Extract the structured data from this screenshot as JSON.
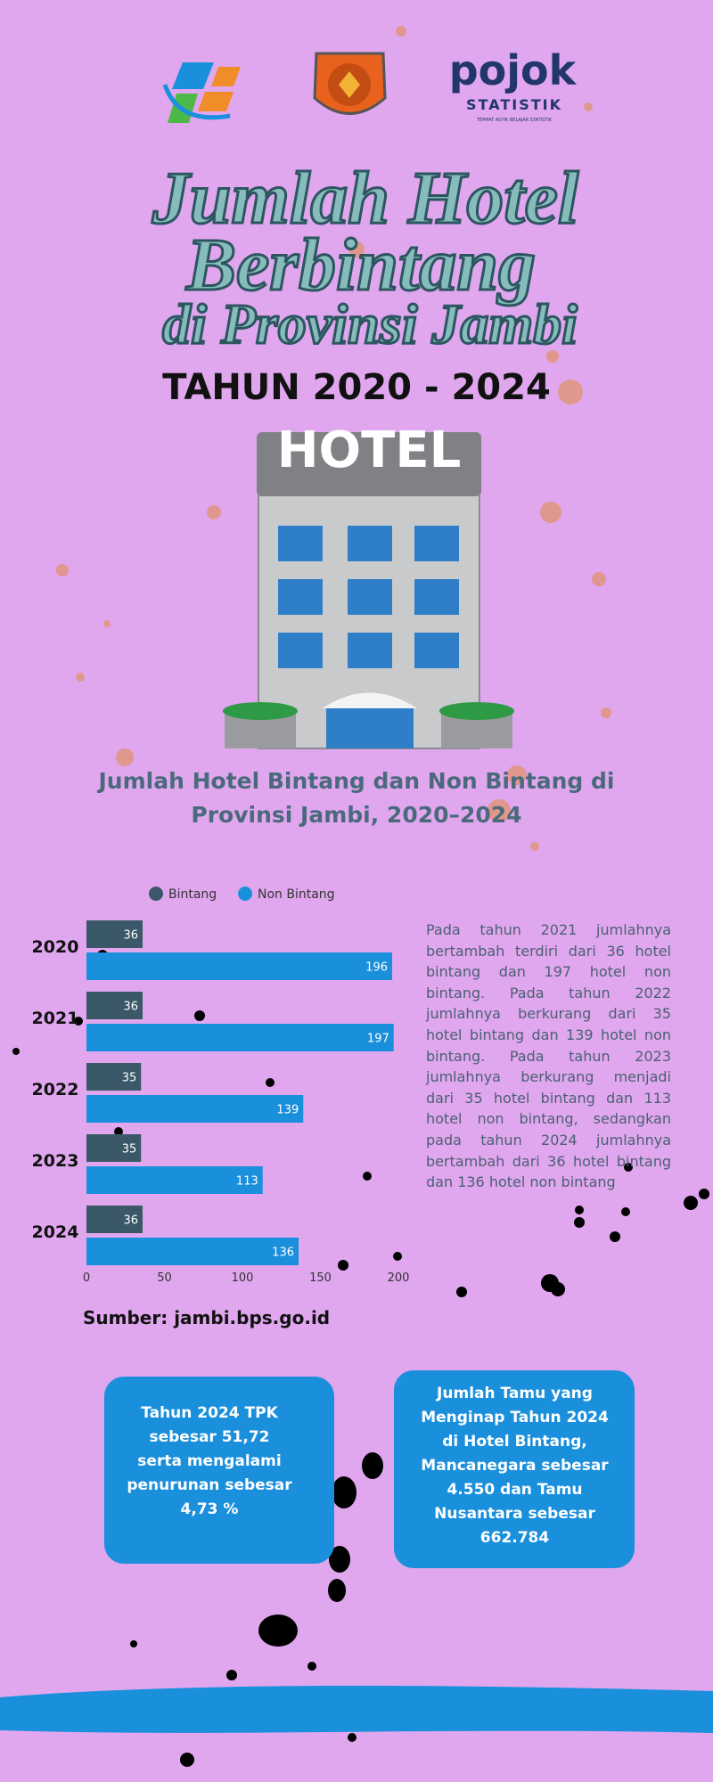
{
  "logos": {
    "pojok": "pojok",
    "statistik": "STATISTIK",
    "tagline": "TEMPAT ASYIK BELAJAR STATISTIK"
  },
  "header": {
    "title_lines": [
      "Jumlah Hotel",
      "Berbintang",
      "di Provinsi Jambi"
    ],
    "subtitle": "TAHUN 2020 - 2024"
  },
  "illustration": {
    "sign": "HOTEL"
  },
  "chart_data": {
    "type": "bar",
    "orientation": "horizontal",
    "title": "Jumlah Hotel Bintang dan Non Bintang di Provinsi Jambi, 2020–2024",
    "categories": [
      "2020",
      "2021",
      "2022",
      "2023",
      "2024"
    ],
    "series": [
      {
        "name": "Bintang",
        "color": "#3b5868",
        "values": [
          36,
          36,
          35,
          35,
          36
        ]
      },
      {
        "name": "Non Bintang",
        "color": "#1a8fdc",
        "values": [
          196,
          197,
          139,
          113,
          136
        ]
      }
    ],
    "xlim": [
      0,
      200
    ],
    "xticks": [
      0,
      50,
      100,
      150,
      200
    ],
    "legend": "top"
  },
  "description": "Pada tahun 2021 jumlahnya bertambah terdiri dari 36 hotel bintang dan 197 hotel non bintang. Pada tahun 2022 jumlahnya berkurang dari 35 hotel bintang dan 139 hotel non bintang. Pada tahun 2023 jumlahnya berkurang menjadi dari 35 hotel bintang dan 113 hotel non bintang, sedangkan pada tahun 2024 jumlahnya bertambah dari 36 hotel bintang dan 136 hotel non bintang",
  "source": "Sumber: jambi.bps.go.id",
  "callouts": [
    "Tahun 2024 TPK sebesar 51,72 serta mengalami penurunan sebesar 4,73 %",
    "Jumlah Tamu yang Menginap Tahun 2024 di Hotel Bintang, Mancanegara sebesar 4.550 dan Tamu Nusantara sebesar  662.784"
  ]
}
